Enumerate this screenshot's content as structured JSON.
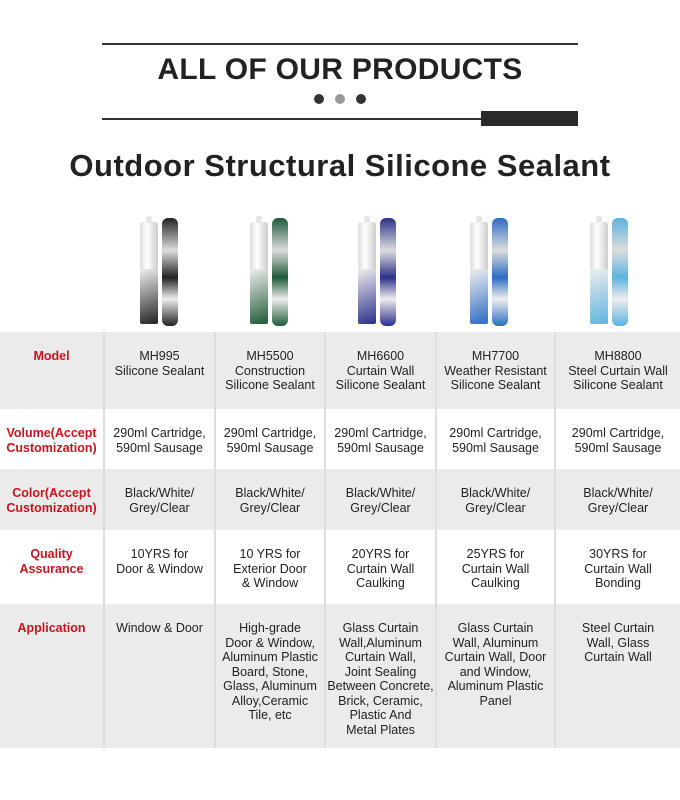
{
  "header": {
    "title": "ALL OF OUR PRODUCTS",
    "dot_colors": [
      "#333333",
      "#999999",
      "#333333"
    ]
  },
  "subtitle": "Outdoor Structural Silicone Sealant",
  "products": [
    {
      "image": "MH995 cartridge and sausage",
      "color": "#222222"
    },
    {
      "image": "MH5500 cartridge and sausage",
      "color": "#1f5a37"
    },
    {
      "image": "MH6600 cartridge and sausage",
      "color": "#2b2f8a"
    },
    {
      "image": "MH7700 cartridge and sausage",
      "color": "#2c6cc4"
    },
    {
      "image": "MH8800 cartridge and sausage",
      "color": "#5cb3e0"
    }
  ],
  "table": {
    "accent": "#c8141c",
    "rows": [
      {
        "label": "Model",
        "cells": [
          "MH995\nSilicone Sealant",
          "MH5500\nConstruction\nSilicone Sealant",
          "MH6600\nCurtain Wall\nSilicone Sealant",
          "MH7700\nWeather Resistant\nSilicone Sealant",
          "MH8800\nSteel Curtain Wall\nSilicone Sealant"
        ]
      },
      {
        "label": "Volume(Accept\nCustomization)",
        "cells": [
          "290ml Cartridge,\n590ml Sausage",
          "290ml Cartridge,\n590ml Sausage",
          "290ml Cartridge,\n590ml Sausage",
          "290ml Cartridge,\n590ml Sausage",
          "290ml Cartridge,\n590ml Sausage"
        ]
      },
      {
        "label": "Color(Accept\nCustomization)",
        "cells": [
          "Black/White/\nGrey/Clear",
          "Black/White/\nGrey/Clear",
          "Black/White/\nGrey/Clear",
          "Black/White/\nGrey/Clear",
          "Black/White/\nGrey/Clear"
        ]
      },
      {
        "label": "Quality\nAssurance",
        "cells": [
          "10YRS for\nDoor & Window",
          "10 YRS for\nExterior Door\n& Window",
          "20YRS for\nCurtain Wall\nCaulking",
          "25YRS for\nCurtain Wall\nCaulking",
          "30YRS for\nCurtain Wall\nBonding"
        ]
      },
      {
        "label": "Application",
        "cells": [
          "Window & Door",
          "High-grade\nDoor & Window,\nAluminum Plastic\nBoard, Stone,\nGlass, Aluminum\nAlloy,Ceramic\nTile, etc",
          "Glass Curtain\nWall,Aluminum\nCurtain Wall,\nJoint Sealing\nBetween Concrete,\nBrick, Ceramic,\nPlastic And\nMetal Plates",
          "Glass Curtain\nWall, Aluminum\nCurtain Wall, Door\nand Window,\nAluminum Plastic\nPanel",
          "Steel Curtain\nWall, Glass\nCurtain Wall"
        ]
      }
    ]
  }
}
